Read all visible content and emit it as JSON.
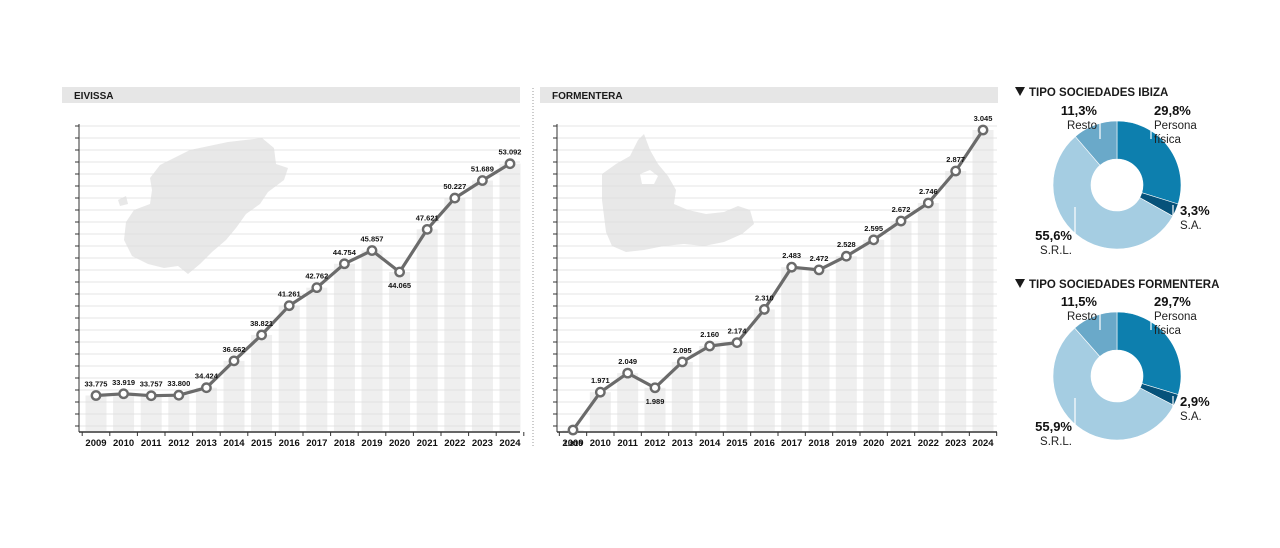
{
  "chart_data": [
    {
      "type": "line",
      "title": "EIVISSA",
      "x": [
        "2009",
        "2010",
        "2011",
        "2012",
        "2013",
        "2014",
        "2015",
        "2016",
        "2017",
        "2018",
        "2019",
        "2020",
        "2021",
        "2022",
        "2023",
        "2024"
      ],
      "values": [
        33775,
        33919,
        33757,
        33800,
        34424,
        36662,
        38821,
        41261,
        42762,
        44754,
        45857,
        44065,
        47621,
        50227,
        51689,
        53092
      ],
      "labels": [
        "33.775",
        "33.919",
        "33.757",
        "33.800",
        "34.424",
        "36.662",
        "38.821",
        "41.261",
        "42.762",
        "44.754",
        "45.857",
        "44.065",
        "47.621",
        "50.227",
        "51.689",
        "53.092"
      ],
      "ylim": [
        30900,
        53400
      ],
      "xlabel": "",
      "ylabel": "",
      "grid": true
    },
    {
      "type": "line",
      "title": "FORMENTERA",
      "x": [
        "2009",
        "2010",
        "2011",
        "2012",
        "2013",
        "2014",
        "2015",
        "2016",
        "2017",
        "2018",
        "2019",
        "2020",
        "2021",
        "2022",
        "2023",
        "2024"
      ],
      "values": [
        1816,
        1971,
        2049,
        1989,
        2095,
        2160,
        2174,
        2310,
        2483,
        2472,
        2528,
        2595,
        2672,
        2746,
        2877,
        3045
      ],
      "labels": [
        "1.816",
        "1.971",
        "2.049",
        "1.989",
        "2.095",
        "2.160",
        "2.174",
        "2.310",
        "2.483",
        "2.472",
        "2.528",
        "2.595",
        "2.672",
        "2.746",
        "2.877",
        "3.045"
      ],
      "ylim": [
        1816,
        3045
      ],
      "xlabel": "",
      "ylabel": "",
      "grid": true
    },
    {
      "type": "pie",
      "title": "TIPO SOCIEDADES IBIZA",
      "slices": [
        {
          "key": "pf",
          "pct": 29.8,
          "pct_label": "29,8%",
          "cat": [
            "Persona",
            "física"
          ],
          "color": "#0d7fae"
        },
        {
          "key": "sa",
          "pct": 3.3,
          "pct_label": "3,3%",
          "cat": [
            "S.A."
          ],
          "color": "#06527a"
        },
        {
          "key": "srl",
          "pct": 55.6,
          "pct_label": "55,6%",
          "cat": [
            "S.R.L."
          ],
          "color": "#a5cde2"
        },
        {
          "key": "resto",
          "pct": 11.3,
          "pct_label": "11,3%",
          "cat": [
            "Resto"
          ],
          "color": "#6aa9c9"
        }
      ]
    },
    {
      "type": "pie",
      "title": "TIPO SOCIEDADES FORMENTERA",
      "slices": [
        {
          "key": "pf",
          "pct": 29.7,
          "pct_label": "29,7%",
          "cat": [
            "Persona",
            "física"
          ],
          "color": "#0d7fae"
        },
        {
          "key": "sa",
          "pct": 2.9,
          "pct_label": "2,9%",
          "cat": [
            "S.A."
          ],
          "color": "#06527a"
        },
        {
          "key": "srl",
          "pct": 55.9,
          "pct_label": "55,9%",
          "cat": [
            "S.R.L."
          ],
          "color": "#a5cde2"
        },
        {
          "key": "resto",
          "pct": 11.5,
          "pct_label": "11,5%",
          "cat": [
            "Resto"
          ],
          "color": "#6aa9c9"
        }
      ]
    }
  ],
  "colors": {
    "line": "#6b6b6b",
    "bar": "#efefef",
    "grid": "#dcdcdc",
    "header_bg": "#e6e6e6",
    "map": "#e8e8e8"
  }
}
